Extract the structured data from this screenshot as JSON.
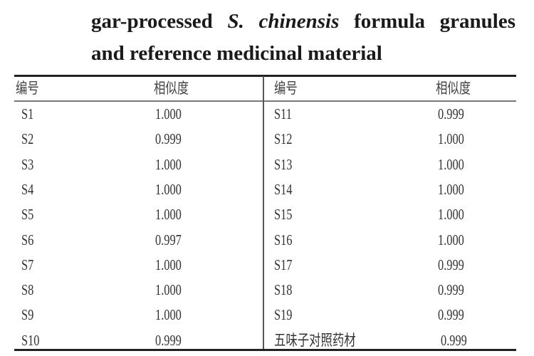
{
  "caption": {
    "line1": "gar-processed S. chinensis formula granules",
    "line1_pre": "gar-processed ",
    "line1_italic": "S. chinensis",
    "line1_post": " formula granules",
    "line2": "and reference medicinal material"
  },
  "table": {
    "headers": [
      "编号",
      "相似度",
      "编号",
      "相似度"
    ],
    "left_rows": [
      {
        "id": "S1",
        "similarity": "1.000"
      },
      {
        "id": "S2",
        "similarity": "0.999"
      },
      {
        "id": "S3",
        "similarity": "1.000"
      },
      {
        "id": "S4",
        "similarity": "1.000"
      },
      {
        "id": "S5",
        "similarity": "1.000"
      },
      {
        "id": "S6",
        "similarity": "0.997"
      },
      {
        "id": "S7",
        "similarity": "1.000"
      },
      {
        "id": "S8",
        "similarity": "1.000"
      },
      {
        "id": "S9",
        "similarity": "1.000"
      },
      {
        "id": "S10",
        "similarity": "0.999"
      }
    ],
    "right_rows": [
      {
        "id": "S11",
        "similarity": "0.999"
      },
      {
        "id": "S12",
        "similarity": "1.000"
      },
      {
        "id": "S13",
        "similarity": "1.000"
      },
      {
        "id": "S14",
        "similarity": "1.000"
      },
      {
        "id": "S15",
        "similarity": "1.000"
      },
      {
        "id": "S16",
        "similarity": "1.000"
      },
      {
        "id": "S17",
        "similarity": "0.999"
      },
      {
        "id": "S18",
        "similarity": "0.999"
      },
      {
        "id": "S19",
        "similarity": "0.999"
      },
      {
        "id": "五味子对照药材",
        "similarity": "0.999"
      }
    ]
  }
}
